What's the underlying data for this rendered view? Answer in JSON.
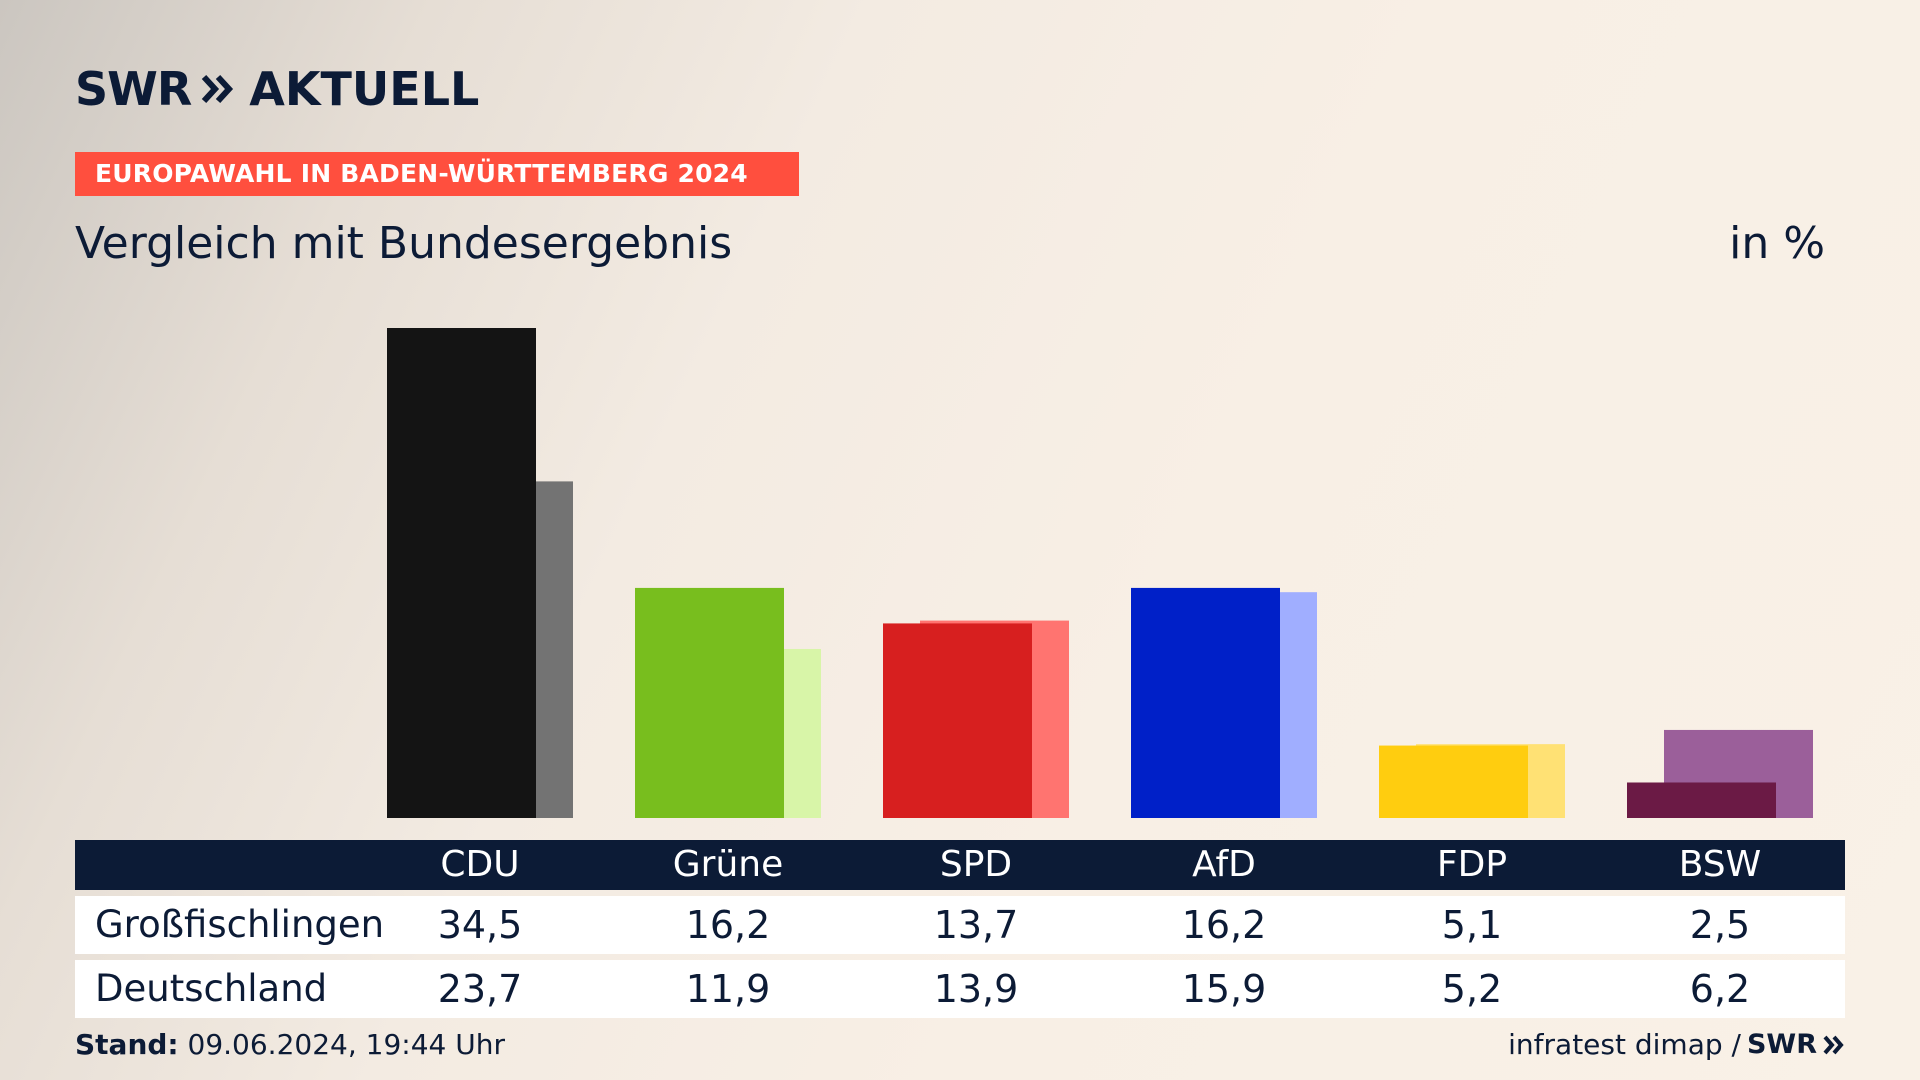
{
  "header": {
    "logo_swr": "SWR",
    "logo_brand": "AKTUELL",
    "tag": "EUROPAWAHL IN BADEN-WÜRTTEMBERG 2024",
    "subtitle": "Vergleich mit Bundesergebnis",
    "unit": "in %"
  },
  "colors": {
    "tag_bg": "#ff4f3e",
    "navy": "#0c1b36"
  },
  "chart_data": {
    "type": "bar",
    "categories": [
      "CDU",
      "Grüne",
      "SPD",
      "AfD",
      "FDP",
      "BSW"
    ],
    "series": [
      {
        "name": "Großfischlingen",
        "values": [
          34.5,
          16.2,
          13.7,
          16.2,
          5.1,
          2.5
        ]
      },
      {
        "name": "Deutschland",
        "values": [
          23.7,
          11.9,
          13.9,
          15.9,
          5.2,
          6.2
        ]
      }
    ],
    "ylim": [
      0,
      34.5
    ],
    "colors_primary": [
      "#141414",
      "#78be1e",
      "#d71f1f",
      "#0020c8",
      "#ffcd0f",
      "#6b1a45"
    ],
    "colors_secondary": [
      "#737373",
      "#d8f5a8",
      "#ff7470",
      "#a0aeff",
      "#ffe174",
      "#9b5f9a"
    ]
  },
  "table": {
    "rows": [
      {
        "label": "Großfischlingen",
        "values": [
          "34,5",
          "16,2",
          "13,7",
          "16,2",
          "5,1",
          "2,5"
        ]
      },
      {
        "label": "Deutschland",
        "values": [
          "23,7",
          "11,9",
          "13,9",
          "15,9",
          "5,2",
          "6,2"
        ]
      }
    ]
  },
  "footer": {
    "stand_label": "Stand:",
    "stand_value": " 09.06.2024, 19:44 Uhr",
    "source": "infratest dimap /",
    "source_logo": "SWR"
  }
}
